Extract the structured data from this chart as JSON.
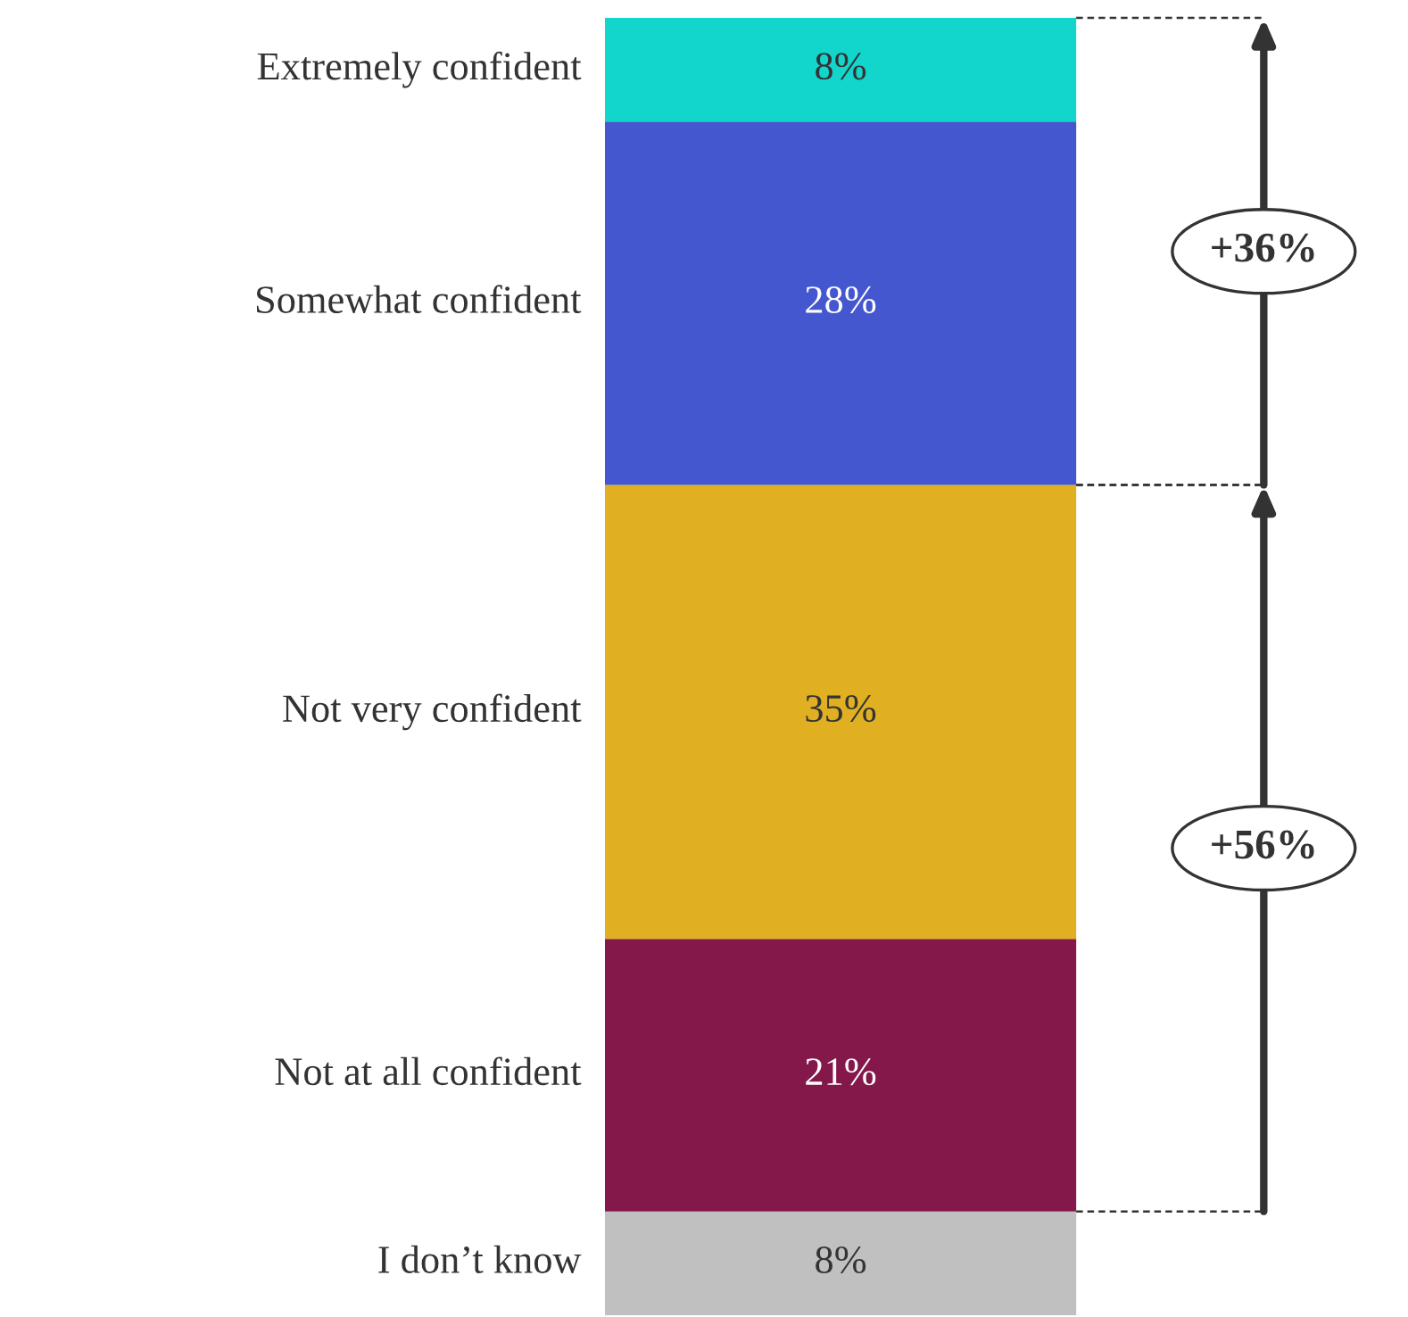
{
  "chart_data": {
    "type": "bar",
    "stacked": true,
    "categories": [
      null
    ],
    "series": [
      {
        "name": "I don’t know",
        "color": "#c0c0c0",
        "values": [
          8
        ],
        "value_labels": [
          "8%"
        ]
      },
      {
        "name": "Not at all confident",
        "color": "#85184b",
        "values": [
          21
        ],
        "value_labels": [
          "21%"
        ]
      },
      {
        "name": "Not very confident",
        "color": "#e0b022",
        "values": [
          35
        ],
        "value_labels": [
          "35%"
        ]
      },
      {
        "name": "Somewhat confident",
        "color": "#4457cf",
        "values": [
          28
        ],
        "value_labels": [
          "28%"
        ]
      },
      {
        "name": "Extremely confident",
        "color": "#12d6cc",
        "values": [
          8
        ],
        "value_labels": [
          "8%"
        ]
      }
    ],
    "annotations": [
      "+36%",
      "+56%"
    ]
  }
}
